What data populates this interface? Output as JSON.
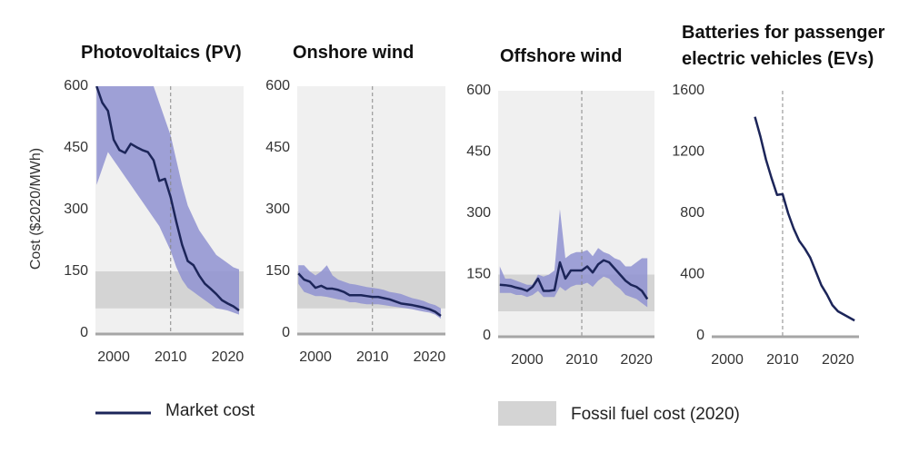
{
  "y_axis_label": "Cost ($2020/MWh)",
  "chart_data": [
    {
      "type": "line",
      "title": "Photovoltaics (PV)",
      "x": [
        1997,
        1998,
        1999,
        2000,
        2001,
        2002,
        2003,
        2004,
        2005,
        2006,
        2007,
        2008,
        2009,
        2010,
        2011,
        2012,
        2013,
        2014,
        2015,
        2016,
        2017,
        2018,
        2019,
        2020,
        2021,
        2022
      ],
      "series": [
        {
          "name": "Market cost",
          "color": "#1c2559",
          "values": [
            600,
            560,
            540,
            470,
            445,
            438,
            460,
            452,
            445,
            440,
            420,
            370,
            375,
            330,
            270,
            215,
            175,
            165,
            140,
            120,
            108,
            95,
            80,
            72,
            65,
            55
          ]
        }
      ],
      "range": {
        "color": "#8f92d1",
        "upper": [
          600,
          600,
          600,
          600,
          600,
          600,
          600,
          600,
          600,
          600,
          600,
          560,
          520,
          480,
          420,
          360,
          310,
          280,
          250,
          230,
          210,
          190,
          180,
          170,
          160,
          155
        ],
        "lower": [
          360,
          400,
          440,
          420,
          400,
          380,
          360,
          340,
          320,
          300,
          280,
          260,
          230,
          200,
          160,
          130,
          110,
          100,
          90,
          80,
          70,
          60,
          58,
          55,
          50,
          45
        ]
      },
      "fossil_range": {
        "name": "Fossil fuel cost (2020)",
        "color": "#d4d4d4",
        "lower": 60,
        "upper": 150
      },
      "background": "#f0f0f0",
      "reference_x": 2010,
      "xlim": [
        1996.8,
        2022.8
      ],
      "xticks": [
        2000,
        2010,
        2020
      ],
      "ylim": [
        0,
        600
      ],
      "yticks": [
        0,
        150,
        300,
        450,
        600
      ]
    },
    {
      "type": "line",
      "title": "Onshore wind",
      "x": [
        1997,
        1998,
        1999,
        2000,
        2001,
        2002,
        2003,
        2004,
        2005,
        2006,
        2007,
        2008,
        2009,
        2010,
        2011,
        2012,
        2013,
        2014,
        2015,
        2016,
        2017,
        2018,
        2019,
        2020,
        2021,
        2022
      ],
      "series": [
        {
          "name": "Market cost",
          "color": "#1c2559",
          "values": [
            145,
            130,
            125,
            110,
            115,
            108,
            108,
            105,
            100,
            92,
            92,
            92,
            90,
            88,
            88,
            85,
            82,
            77,
            72,
            70,
            68,
            65,
            62,
            58,
            52,
            42
          ]
        }
      ],
      "range": {
        "color": "#8f92d1",
        "upper": [
          165,
          165,
          150,
          140,
          150,
          165,
          140,
          130,
          125,
          120,
          118,
          115,
          112,
          110,
          108,
          105,
          100,
          98,
          95,
          90,
          85,
          82,
          78,
          72,
          68,
          60
        ],
        "lower": [
          120,
          100,
          95,
          90,
          90,
          88,
          85,
          82,
          80,
          75,
          75,
          72,
          70,
          70,
          70,
          68,
          66,
          64,
          62,
          60,
          58,
          55,
          52,
          50,
          45,
          35
        ]
      },
      "fossil_range": {
        "color": "#d4d4d4",
        "lower": 60,
        "upper": 150
      },
      "background": "#f0f0f0",
      "reference_x": 2010,
      "xlim": [
        1996.8,
        2022.8
      ],
      "xticks": [
        2000,
        2010,
        2020
      ],
      "ylim": [
        0,
        600
      ],
      "yticks": [
        0,
        150,
        300,
        450,
        600
      ]
    },
    {
      "type": "line",
      "title": "Offshore wind",
      "x": [
        1995,
        1996,
        1997,
        1998,
        1999,
        2000,
        2001,
        2002,
        2003,
        2004,
        2005,
        2006,
        2007,
        2008,
        2009,
        2010,
        2011,
        2012,
        2013,
        2014,
        2015,
        2016,
        2017,
        2018,
        2019,
        2020,
        2021,
        2022
      ],
      "series": [
        {
          "name": "Market cost",
          "color": "#1c2559",
          "values": [
            125,
            124,
            122,
            118,
            115,
            110,
            120,
            140,
            110,
            110,
            112,
            180,
            140,
            160,
            160,
            160,
            170,
            155,
            175,
            185,
            180,
            165,
            150,
            135,
            125,
            120,
            110,
            90
          ]
        }
      ],
      "range": {
        "color": "#8f92d1",
        "upper": [
          170,
          140,
          140,
          135,
          130,
          125,
          125,
          150,
          145,
          150,
          160,
          310,
          190,
          200,
          205,
          205,
          210,
          195,
          215,
          205,
          200,
          190,
          185,
          170,
          170,
          180,
          190,
          190
        ],
        "lower": [
          105,
          105,
          105,
          100,
          100,
          95,
          100,
          110,
          95,
          95,
          95,
          120,
          110,
          120,
          125,
          125,
          130,
          120,
          135,
          145,
          140,
          125,
          115,
          100,
          95,
          90,
          80,
          70
        ]
      },
      "fossil_range": {
        "color": "#d4d4d4",
        "lower": 60,
        "upper": 150
      },
      "background": "#f0f0f0",
      "reference_x": 2010,
      "xlim": [
        1994.7,
        2023.3
      ],
      "xticks": [
        2000,
        2010,
        2020
      ],
      "ylim": [
        0,
        600
      ],
      "yticks": [
        0,
        150,
        300,
        450,
        600
      ]
    },
    {
      "type": "line",
      "title": "Batteries for passenger electric vehicles (EVs)",
      "x": [
        2005,
        2006,
        2007,
        2008,
        2009,
        2010,
        2011,
        2012,
        2013,
        2014,
        2015,
        2016,
        2017,
        2018,
        2019,
        2020,
        2021,
        2022,
        2023
      ],
      "series": [
        {
          "name": "Market cost",
          "color": "#1c2559",
          "values": [
            1430,
            1300,
            1150,
            1030,
            920,
            925,
            800,
            700,
            620,
            570,
            510,
            420,
            330,
            270,
            200,
            160,
            140,
            120,
            100
          ]
        }
      ],
      "reference_x": 2010,
      "xlim": [
        1997.2,
        2023.8
      ],
      "xticks": [
        2000,
        2010,
        2020
      ],
      "ylim": [
        0,
        1600
      ],
      "yticks": [
        0,
        400,
        800,
        1200,
        1600
      ]
    }
  ]
}
